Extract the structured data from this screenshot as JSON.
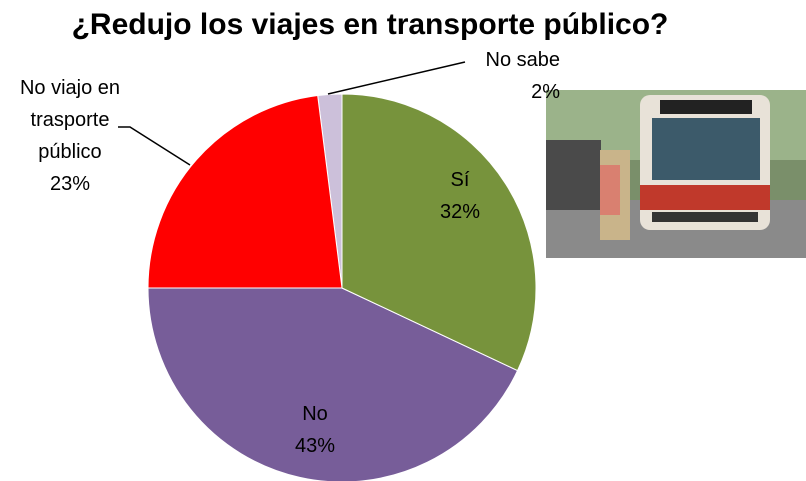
{
  "chart_data": {
    "type": "pie",
    "title": "¿Redujo los viajes en transporte público?",
    "categories": [
      "Sí",
      "No",
      "No viajo en trasporte público",
      "No sabe"
    ],
    "values": [
      32,
      43,
      23,
      2
    ],
    "value_labels": [
      "32%",
      "43%",
      "23%",
      "2%"
    ],
    "colors": [
      "#77933c",
      "#775d99",
      "#ff0000",
      "#ccc0da"
    ]
  }
}
